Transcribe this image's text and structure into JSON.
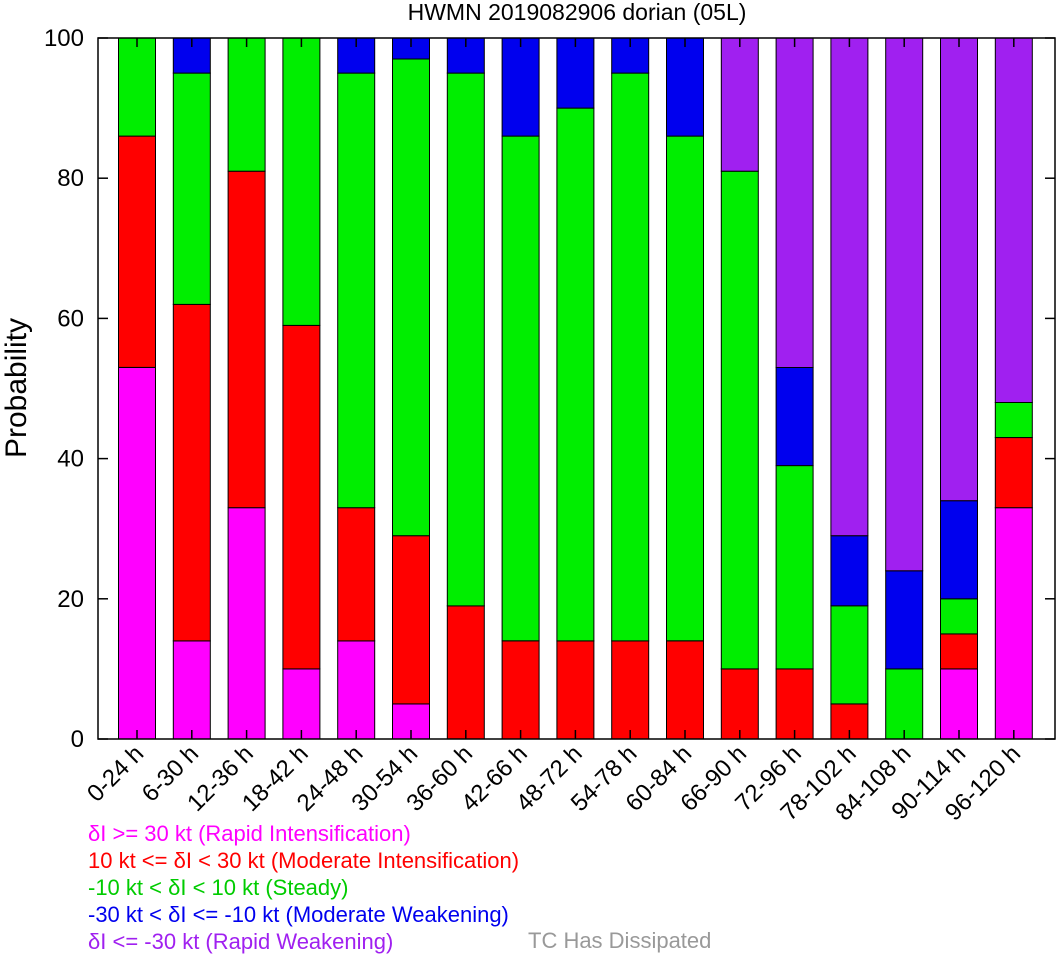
{
  "chart_data": {
    "type": "bar",
    "stacked": true,
    "title": "HWMN 2019082906 dorian (05L)",
    "xlabel": "",
    "ylabel": "Probability",
    "ylim": [
      0,
      100
    ],
    "yticks": [
      0,
      20,
      40,
      60,
      80,
      100
    ],
    "grid": false,
    "categories": [
      "0-24 h",
      "6-30 h",
      "12-36 h",
      "18-42 h",
      "24-48 h",
      "30-54 h",
      "36-60 h",
      "42-66 h",
      "48-72 h",
      "54-78 h",
      "60-84 h",
      "66-90 h",
      "72-96 h",
      "78-102 h",
      "84-108 h",
      "90-114 h",
      "96-120 h"
    ],
    "series": [
      {
        "name": "δI >= 30 kt (Rapid Intensification)",
        "color": "#ff00ff",
        "values": [
          53,
          14,
          33,
          10,
          14,
          5,
          0,
          0,
          0,
          0,
          0,
          0,
          0,
          0,
          0,
          10,
          33
        ]
      },
      {
        "name": "10 kt <= δI < 30 kt (Moderate Intensification)",
        "color": "#ff0000",
        "values": [
          33,
          48,
          48,
          49,
          19,
          24,
          19,
          14,
          14,
          14,
          14,
          10,
          10,
          5,
          0,
          5,
          10
        ]
      },
      {
        "name": "-10 kt < δI < 10 kt (Steady)",
        "color": "#00ee00",
        "values": [
          14,
          33,
          19,
          41,
          62,
          68,
          76,
          72,
          76,
          81,
          72,
          71,
          29,
          14,
          10,
          5,
          5
        ]
      },
      {
        "name": "-30 kt < δI <= -10 kt (Moderate Weakening)",
        "color": "#0000ee",
        "values": [
          0,
          5,
          0,
          0,
          5,
          3,
          5,
          14,
          10,
          5,
          14,
          0,
          14,
          10,
          14,
          14,
          0
        ]
      },
      {
        "name": "δI <= -30 kt (Rapid Weakening)",
        "color": "#a020f0",
        "values": [
          0,
          0,
          0,
          0,
          0,
          0,
          0,
          0,
          0,
          0,
          0,
          19,
          47,
          71,
          76,
          66,
          52
        ]
      }
    ],
    "legend_position": "bottom-left",
    "extra_legend": {
      "name": "TC Has Dissipated",
      "color": "#999999"
    }
  }
}
